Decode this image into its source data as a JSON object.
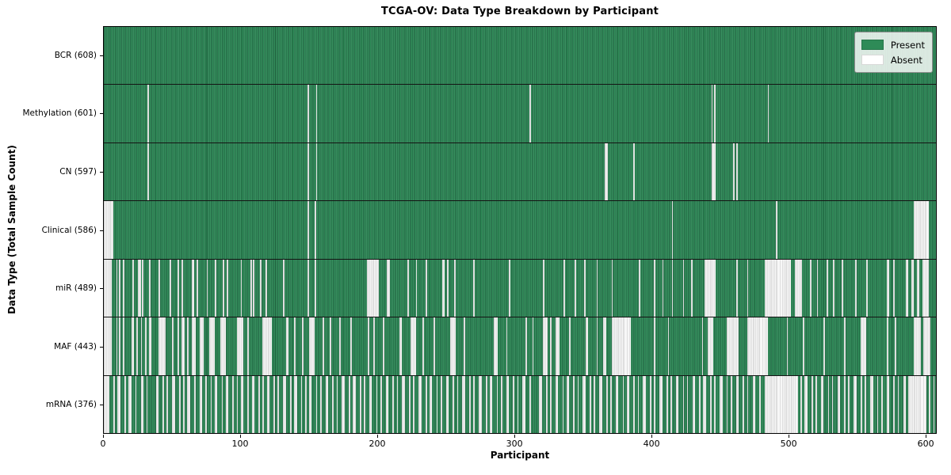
{
  "chart_data": {
    "type": "heatmap",
    "title": "TCGA-OV: Data Type Breakdown by Participant",
    "xlabel": "Participant",
    "ylabel": "Data Type (Total Sample Count)",
    "x_ticks": [
      0,
      100,
      200,
      300,
      400,
      500,
      600
    ],
    "xlim": [
      0,
      608
    ],
    "n_participants": 608,
    "grid": false,
    "legend_position": "upper right",
    "legend": [
      {
        "label": "Present",
        "color": "#2e8b57"
      },
      {
        "label": "Absent",
        "color": "#ffffff"
      }
    ],
    "rows": [
      {
        "label": "BCR (608)",
        "data_type": "BCR",
        "present_count": 608,
        "absent_intervals": []
      },
      {
        "label": "Methylation (601)",
        "data_type": "Methylation",
        "present_count": 601,
        "absent_intervals": [
          [
            32,
            33
          ],
          [
            149,
            150
          ],
          [
            155,
            156
          ],
          [
            311,
            312
          ],
          [
            444,
            445
          ],
          [
            446,
            447
          ],
          [
            485,
            486
          ]
        ]
      },
      {
        "label": "CN (597)",
        "data_type": "CN",
        "present_count": 597,
        "absent_intervals": [
          [
            32,
            33
          ],
          [
            149,
            150
          ],
          [
            155,
            156
          ],
          [
            366,
            368
          ],
          [
            387,
            388
          ],
          [
            444,
            447
          ],
          [
            460,
            461
          ],
          [
            462,
            463
          ]
        ]
      },
      {
        "label": "Clinical (586)",
        "data_type": "Clinical",
        "present_count": 586,
        "absent_intervals": [
          [
            0,
            7
          ],
          [
            149,
            150
          ],
          [
            154,
            155
          ],
          [
            415,
            416
          ],
          [
            491,
            492
          ],
          [
            592,
            603
          ]
        ]
      },
      {
        "label": "miR (489)",
        "data_type": "miR",
        "present_count": 489,
        "absent_intervals": [
          [
            0,
            6
          ],
          [
            9,
            10
          ],
          [
            11,
            12
          ],
          [
            14,
            15
          ],
          [
            21,
            22
          ],
          [
            25,
            27
          ],
          [
            28,
            29
          ],
          [
            33,
            34
          ],
          [
            40,
            41
          ],
          [
            48,
            49
          ],
          [
            54,
            55
          ],
          [
            57,
            58
          ],
          [
            64,
            66
          ],
          [
            68,
            69
          ],
          [
            75,
            76
          ],
          [
            81,
            82
          ],
          [
            87,
            88
          ],
          [
            90,
            91
          ],
          [
            100,
            101
          ],
          [
            107,
            108
          ],
          [
            109,
            110
          ],
          [
            114,
            115
          ],
          [
            118,
            119
          ],
          [
            131,
            132
          ],
          [
            149,
            150
          ],
          [
            154,
            155
          ],
          [
            192,
            201
          ],
          [
            207,
            209
          ],
          [
            222,
            223
          ],
          [
            228,
            229
          ],
          [
            235,
            236
          ],
          [
            247,
            249
          ],
          [
            251,
            252
          ],
          [
            256,
            257
          ],
          [
            270,
            271
          ],
          [
            296,
            297
          ],
          [
            321,
            322
          ],
          [
            336,
            337
          ],
          [
            344,
            345
          ],
          [
            351,
            352
          ],
          [
            360,
            361
          ],
          [
            371,
            372
          ],
          [
            391,
            392
          ],
          [
            402,
            403
          ],
          [
            408,
            409
          ],
          [
            415,
            416
          ],
          [
            423,
            424
          ],
          [
            429,
            430
          ],
          [
            439,
            447
          ],
          [
            462,
            463
          ],
          [
            470,
            471
          ],
          [
            483,
            502
          ],
          [
            505,
            510
          ],
          [
            516,
            517
          ],
          [
            521,
            522
          ],
          [
            528,
            529
          ],
          [
            533,
            534
          ],
          [
            539,
            540
          ],
          [
            549,
            550
          ],
          [
            557,
            558
          ],
          [
            572,
            574
          ],
          [
            577,
            578
          ],
          [
            586,
            588
          ],
          [
            590,
            592
          ],
          [
            594,
            596
          ],
          [
            598,
            603
          ]
        ]
      },
      {
        "label": "MAF (443)",
        "data_type": "MAF",
        "present_count": 443,
        "absent_intervals": [
          [
            0,
            6
          ],
          [
            9,
            10
          ],
          [
            11,
            12
          ],
          [
            14,
            15
          ],
          [
            20,
            22
          ],
          [
            24,
            25
          ],
          [
            27,
            28
          ],
          [
            30,
            31
          ],
          [
            33,
            35
          ],
          [
            40,
            45
          ],
          [
            50,
            51
          ],
          [
            54,
            55
          ],
          [
            57,
            59
          ],
          [
            61,
            62
          ],
          [
            64,
            67
          ],
          [
            70,
            73
          ],
          [
            77,
            81
          ],
          [
            85,
            89
          ],
          [
            97,
            102
          ],
          [
            105,
            106
          ],
          [
            116,
            123
          ],
          [
            133,
            135
          ],
          [
            139,
            140
          ],
          [
            145,
            146
          ],
          [
            150,
            154
          ],
          [
            160,
            161
          ],
          [
            165,
            166
          ],
          [
            172,
            173
          ],
          [
            180,
            181
          ],
          [
            193,
            194
          ],
          [
            197,
            198
          ],
          [
            204,
            205
          ],
          [
            216,
            218
          ],
          [
            224,
            228
          ],
          [
            233,
            234
          ],
          [
            241,
            242
          ],
          [
            253,
            257
          ],
          [
            263,
            264
          ],
          [
            285,
            288
          ],
          [
            294,
            295
          ],
          [
            308,
            309
          ],
          [
            313,
            314
          ],
          [
            321,
            324
          ],
          [
            326,
            327
          ],
          [
            330,
            333
          ],
          [
            340,
            341
          ],
          [
            352,
            354
          ],
          [
            360,
            361
          ],
          [
            365,
            367
          ],
          [
            371,
            385
          ],
          [
            402,
            403
          ],
          [
            412,
            413
          ],
          [
            437,
            438
          ],
          [
            441,
            445
          ],
          [
            455,
            464
          ],
          [
            470,
            485
          ],
          [
            499,
            500
          ],
          [
            511,
            512
          ],
          [
            526,
            527
          ],
          [
            541,
            542
          ],
          [
            553,
            557
          ],
          [
            572,
            573
          ],
          [
            578,
            579
          ],
          [
            592,
            597
          ],
          [
            599,
            604
          ]
        ]
      },
      {
        "label": "mRNA (376)",
        "data_type": "mRNA",
        "present_count": 376,
        "absent_intervals": [
          [
            0,
            4
          ],
          [
            7,
            8
          ],
          [
            10,
            12
          ],
          [
            15,
            16
          ],
          [
            18,
            20
          ],
          [
            23,
            24
          ],
          [
            27,
            29
          ],
          [
            31,
            32
          ],
          [
            38,
            40
          ],
          [
            43,
            44
          ],
          [
            46,
            47
          ],
          [
            50,
            52
          ],
          [
            55,
            56
          ],
          [
            58,
            59
          ],
          [
            61,
            63
          ],
          [
            66,
            67
          ],
          [
            70,
            72
          ],
          [
            74,
            75
          ],
          [
            78,
            79
          ],
          [
            81,
            83
          ],
          [
            86,
            87
          ],
          [
            89,
            91
          ],
          [
            94,
            95
          ],
          [
            97,
            98
          ],
          [
            100,
            102
          ],
          [
            105,
            106
          ],
          [
            108,
            110
          ],
          [
            113,
            114
          ],
          [
            116,
            117
          ],
          [
            119,
            121
          ],
          [
            124,
            125
          ],
          [
            127,
            128
          ],
          [
            131,
            133
          ],
          [
            136,
            137
          ],
          [
            139,
            141
          ],
          [
            144,
            145
          ],
          [
            147,
            148
          ],
          [
            150,
            152
          ],
          [
            155,
            156
          ],
          [
            158,
            159
          ],
          [
            162,
            164
          ],
          [
            167,
            168
          ],
          [
            170,
            171
          ],
          [
            174,
            176
          ],
          [
            179,
            180
          ],
          [
            182,
            184
          ],
          [
            187,
            188
          ],
          [
            190,
            191
          ],
          [
            194,
            196
          ],
          [
            199,
            200
          ],
          [
            202,
            203
          ],
          [
            206,
            208
          ],
          [
            211,
            212
          ],
          [
            214,
            215
          ],
          [
            218,
            220
          ],
          [
            223,
            224
          ],
          [
            226,
            227
          ],
          [
            230,
            232
          ],
          [
            235,
            236
          ],
          [
            238,
            240
          ],
          [
            243,
            244
          ],
          [
            246,
            247
          ],
          [
            250,
            252
          ],
          [
            255,
            256
          ],
          [
            258,
            259
          ],
          [
            262,
            264
          ],
          [
            267,
            268
          ],
          [
            270,
            271
          ],
          [
            274,
            276
          ],
          [
            279,
            280
          ],
          [
            282,
            284
          ],
          [
            287,
            288
          ],
          [
            290,
            291
          ],
          [
            294,
            296
          ],
          [
            299,
            300
          ],
          [
            302,
            303
          ],
          [
            306,
            308
          ],
          [
            311,
            312
          ],
          [
            318,
            320
          ],
          [
            323,
            324
          ],
          [
            326,
            327
          ],
          [
            330,
            332
          ],
          [
            335,
            336
          ],
          [
            338,
            340
          ],
          [
            343,
            344
          ],
          [
            346,
            347
          ],
          [
            350,
            352
          ],
          [
            355,
            356
          ],
          [
            358,
            359
          ],
          [
            362,
            364
          ],
          [
            367,
            368
          ],
          [
            370,
            371
          ],
          [
            374,
            376
          ],
          [
            379,
            380
          ],
          [
            382,
            384
          ],
          [
            387,
            388
          ],
          [
            390,
            391
          ],
          [
            394,
            396
          ],
          [
            399,
            400
          ],
          [
            402,
            403
          ],
          [
            406,
            408
          ],
          [
            411,
            412
          ],
          [
            414,
            415
          ],
          [
            418,
            420
          ],
          [
            423,
            424
          ],
          [
            426,
            427
          ],
          [
            430,
            432
          ],
          [
            435,
            436
          ],
          [
            438,
            440
          ],
          [
            443,
            444
          ],
          [
            446,
            447
          ],
          [
            450,
            452
          ],
          [
            455,
            456
          ],
          [
            458,
            459
          ],
          [
            462,
            464
          ],
          [
            467,
            468
          ],
          [
            470,
            471
          ],
          [
            474,
            476
          ],
          [
            479,
            480
          ],
          [
            483,
            507
          ],
          [
            509,
            510
          ],
          [
            512,
            514
          ],
          [
            517,
            518
          ],
          [
            520,
            521
          ],
          [
            524,
            526
          ],
          [
            529,
            530
          ],
          [
            532,
            533
          ],
          [
            536,
            538
          ],
          [
            541,
            542
          ],
          [
            544,
            545
          ],
          [
            548,
            550
          ],
          [
            553,
            554
          ],
          [
            556,
            557
          ],
          [
            560,
            562
          ],
          [
            565,
            566
          ],
          [
            568,
            569
          ],
          [
            572,
            574
          ],
          [
            577,
            578
          ],
          [
            580,
            581
          ],
          [
            584,
            586
          ],
          [
            588,
            601
          ],
          [
            603,
            604
          ],
          [
            606,
            607
          ]
        ]
      }
    ]
  },
  "colors": {
    "present_green": "#2e8b57",
    "present_edge_dark": "#1d5e3c",
    "present_light": "#44946a",
    "absent_white": "#f7f7f7",
    "absent_edge": "#c6c6c6",
    "frame": "#000000"
  }
}
